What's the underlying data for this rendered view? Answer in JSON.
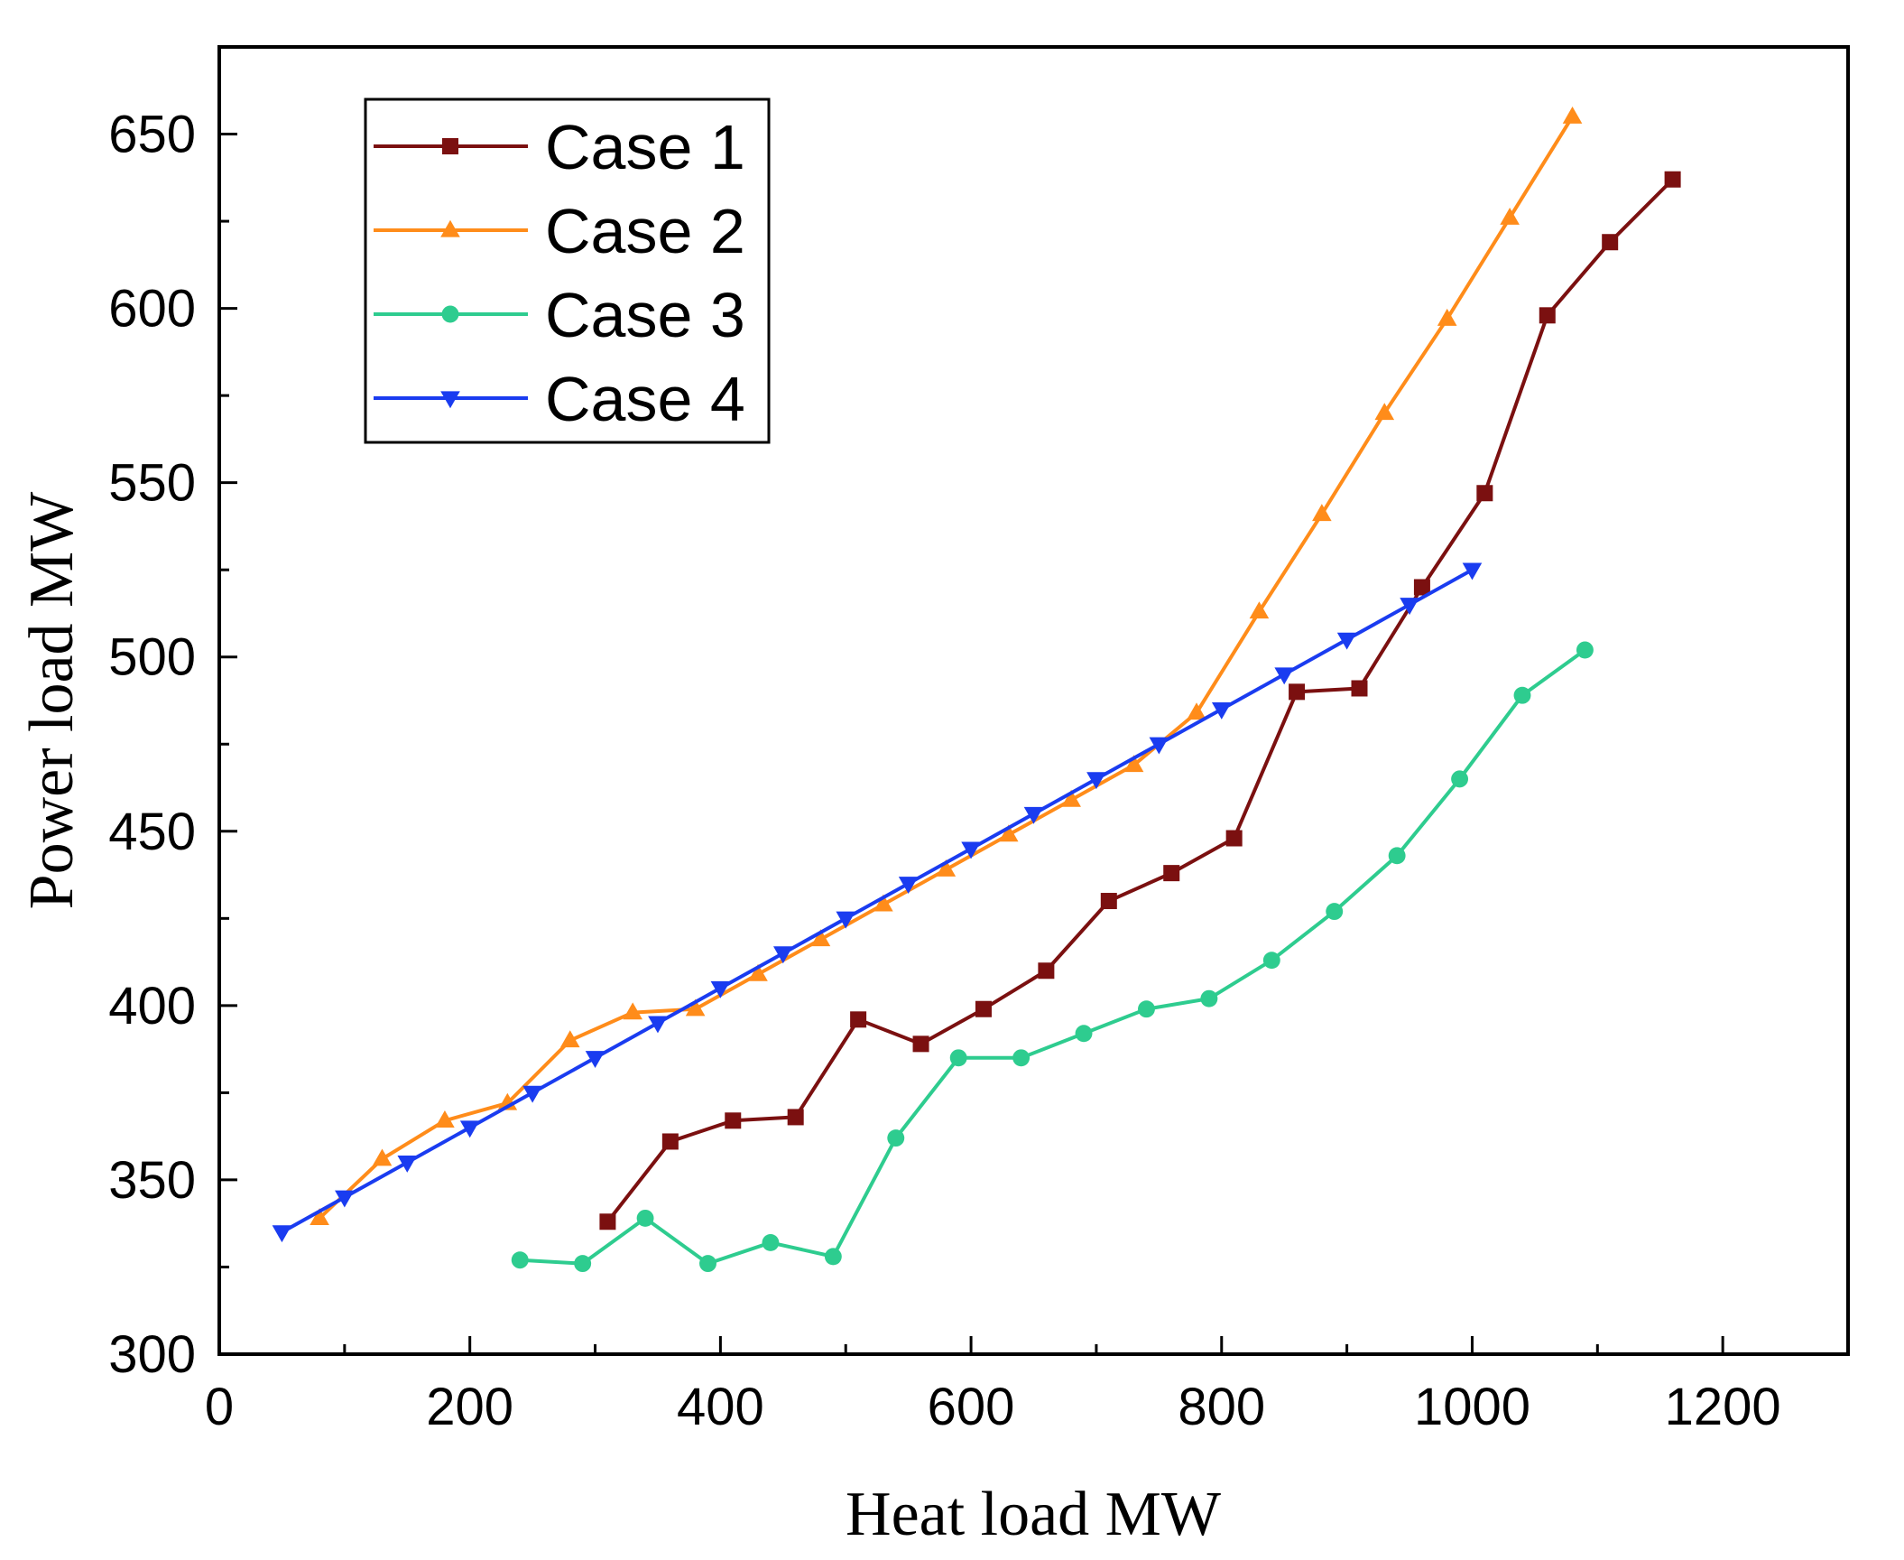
{
  "chart_data": {
    "type": "line",
    "title": "",
    "xlabel": "Heat load MW",
    "ylabel": "Power load MW",
    "xlim": [
      0,
      1300
    ],
    "ylim": [
      300,
      675
    ],
    "xticks": [
      0,
      200,
      400,
      600,
      800,
      1000,
      1200
    ],
    "yticks": [
      300,
      350,
      400,
      450,
      500,
      550,
      600,
      650
    ],
    "grid": false,
    "legend_position": "top-left",
    "series": [
      {
        "name": "Case 1",
        "color": "#7b1010",
        "marker": "square",
        "points": [
          [
            310,
            338
          ],
          [
            360,
            361
          ],
          [
            410,
            367
          ],
          [
            460,
            368
          ],
          [
            510,
            396
          ],
          [
            560,
            389
          ],
          [
            610,
            399
          ],
          [
            660,
            410
          ],
          [
            710,
            430
          ],
          [
            760,
            438
          ],
          [
            810,
            448
          ],
          [
            860,
            490
          ],
          [
            910,
            491
          ],
          [
            960,
            520
          ],
          [
            1010,
            547
          ],
          [
            1060,
            598
          ],
          [
            1110,
            619
          ],
          [
            1160,
            637
          ]
        ]
      },
      {
        "name": "Case 2",
        "color": "#ff8c1a",
        "marker": "triangle-up",
        "points": [
          [
            80,
            339
          ],
          [
            130,
            356
          ],
          [
            180,
            367
          ],
          [
            230,
            372
          ],
          [
            280,
            390
          ],
          [
            330,
            398
          ],
          [
            380,
            399
          ],
          [
            430,
            409
          ],
          [
            480,
            419
          ],
          [
            530,
            429
          ],
          [
            580,
            439
          ],
          [
            630,
            449
          ],
          [
            680,
            459
          ],
          [
            730,
            469
          ],
          [
            780,
            484
          ],
          [
            830,
            513
          ],
          [
            880,
            541
          ],
          [
            930,
            570
          ],
          [
            980,
            597
          ],
          [
            1030,
            626
          ],
          [
            1080,
            655
          ]
        ]
      },
      {
        "name": "Case 3",
        "color": "#2ecc8f",
        "marker": "circle",
        "points": [
          [
            240,
            327
          ],
          [
            290,
            326
          ],
          [
            340,
            339
          ],
          [
            390,
            326
          ],
          [
            440,
            332
          ],
          [
            490,
            328
          ],
          [
            540,
            362
          ],
          [
            590,
            385
          ],
          [
            640,
            385
          ],
          [
            690,
            392
          ],
          [
            740,
            399
          ],
          [
            790,
            402
          ],
          [
            840,
            413
          ],
          [
            890,
            427
          ],
          [
            940,
            443
          ],
          [
            990,
            465
          ],
          [
            1040,
            489
          ],
          [
            1090,
            502
          ]
        ]
      },
      {
        "name": "Case 4",
        "color": "#1a3cf0",
        "marker": "triangle-down",
        "points": [
          [
            50,
            335
          ],
          [
            100,
            345
          ],
          [
            150,
            355
          ],
          [
            200,
            365
          ],
          [
            250,
            375
          ],
          [
            300,
            385
          ],
          [
            350,
            395
          ],
          [
            400,
            405
          ],
          [
            450,
            415
          ],
          [
            500,
            425
          ],
          [
            550,
            435
          ],
          [
            600,
            445
          ],
          [
            650,
            455
          ],
          [
            700,
            465
          ],
          [
            750,
            475
          ],
          [
            800,
            485
          ],
          [
            850,
            495
          ],
          [
            900,
            505
          ],
          [
            950,
            515
          ],
          [
            1000,
            525
          ]
        ]
      }
    ]
  }
}
